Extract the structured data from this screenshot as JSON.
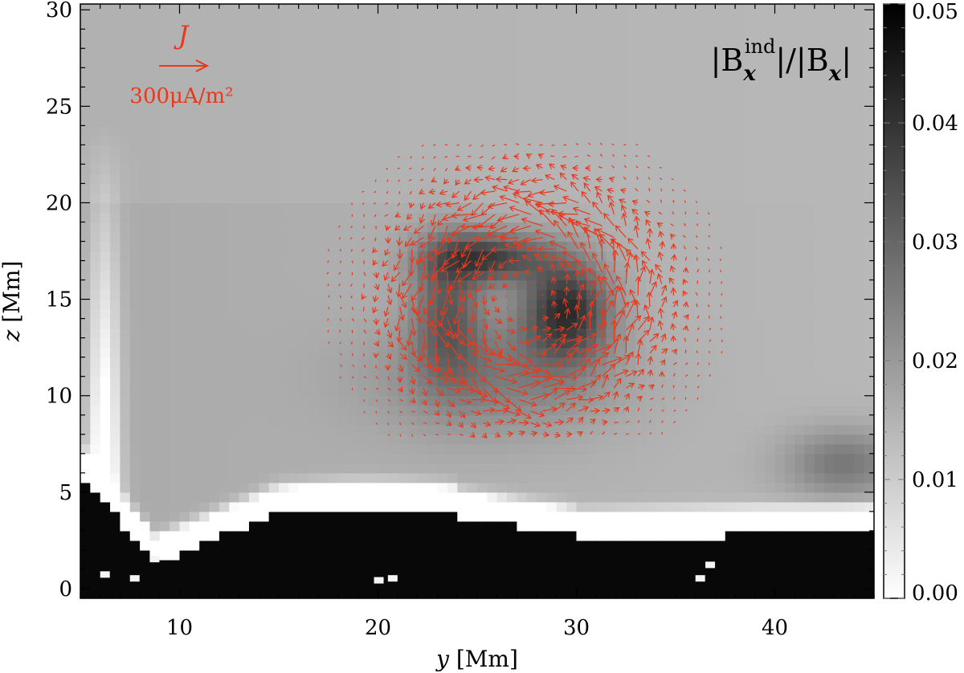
{
  "chart_data": {
    "type": "heatmap",
    "title": "",
    "xlabel": "y [Mm]",
    "ylabel": "z [Mm]",
    "xlabel_var": "y",
    "xlabel_unit": "[Mm]",
    "ylabel_var": "z",
    "ylabel_unit": "[Mm]",
    "xlim": [
      5,
      45
    ],
    "ylim": [
      -0.5,
      30.3
    ],
    "x_ticks": [
      10,
      20,
      30,
      40
    ],
    "y_ticks": [
      0,
      5,
      10,
      15,
      20,
      25,
      30
    ],
    "colorbar": {
      "label": "|B_x^ind| / |B_x|",
      "range": [
        0.0,
        0.05
      ],
      "ticks": [
        "0.00",
        "0.01",
        "0.02",
        "0.03",
        "0.04",
        "0.05"
      ],
      "colormap": "white-to-black"
    },
    "overlay": {
      "type": "vector-field",
      "quantity": "J",
      "reference_label": "300μA/m²",
      "reference_value": 300,
      "color": "#e8391d"
    },
    "features": [
      {
        "kind": "strong-region",
        "y": 29.5,
        "z": 14.5,
        "value": 0.05
      },
      {
        "kind": "strong-region",
        "y": 26.0,
        "z": 16.5,
        "value": 0.045
      },
      {
        "kind": "strong-band",
        "z_range": [
          0,
          3
        ],
        "value": 0.05
      }
    ],
    "grid": false,
    "legend": "none"
  },
  "colors": {
    "vector": "#e8391d",
    "axis": "#000000"
  },
  "labels": {
    "colorbar_title_text": "|B",
    "colorbar_title_sup": "ind",
    "colorbar_title_sub": "x",
    "colorbar_title_mid": "|/|B",
    "colorbar_title_sub2": "x",
    "colorbar_title_end": "|",
    "ref_symbol": "J",
    "ref_value": "300μA/m²"
  }
}
